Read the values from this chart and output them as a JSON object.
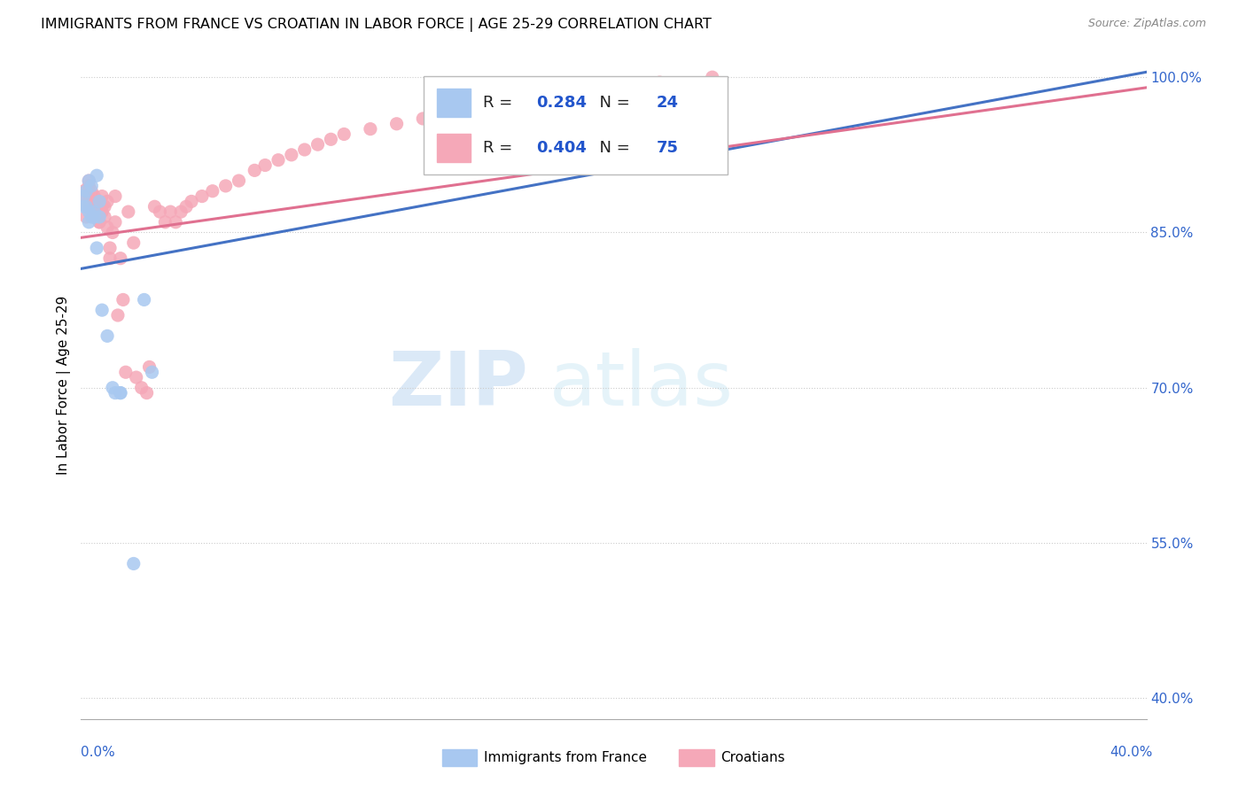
{
  "title": "IMMIGRANTS FROM FRANCE VS CROATIAN IN LABOR FORCE | AGE 25-29 CORRELATION CHART",
  "source": "Source: ZipAtlas.com",
  "ylabel": "In Labor Force | Age 25-29",
  "ylim": [
    0.38,
    1.025
  ],
  "xlim": [
    0.0,
    0.405
  ],
  "yticks": [
    0.4,
    0.55,
    0.7,
    0.85,
    1.0
  ],
  "ytick_labels": [
    "40.0%",
    "55.0%",
    "70.0%",
    "85.0%",
    "100.0%"
  ],
  "france_R": 0.284,
  "france_N": 24,
  "croatian_R": 0.404,
  "croatian_N": 75,
  "france_color": "#a8c8f0",
  "croatian_color": "#f5a8b8",
  "france_line_color": "#4472c4",
  "croatian_line_color": "#e07090",
  "legend_R_color": "#2255cc",
  "france_x": [
    0.001,
    0.001,
    0.002,
    0.002,
    0.003,
    0.003,
    0.003,
    0.004,
    0.004,
    0.005,
    0.005,
    0.006,
    0.006,
    0.007,
    0.007,
    0.008,
    0.01,
    0.012,
    0.013,
    0.015,
    0.015,
    0.02,
    0.024,
    0.027
  ],
  "france_y": [
    0.875,
    0.885,
    0.875,
    0.89,
    0.86,
    0.87,
    0.9,
    0.865,
    0.895,
    0.87,
    0.865,
    0.835,
    0.905,
    0.88,
    0.865,
    0.775,
    0.75,
    0.7,
    0.695,
    0.695,
    0.695,
    0.53,
    0.785,
    0.715
  ],
  "croatian_x": [
    0.001,
    0.001,
    0.001,
    0.002,
    0.002,
    0.002,
    0.003,
    0.003,
    0.003,
    0.003,
    0.004,
    0.004,
    0.004,
    0.005,
    0.005,
    0.005,
    0.006,
    0.006,
    0.007,
    0.007,
    0.007,
    0.007,
    0.008,
    0.008,
    0.008,
    0.009,
    0.009,
    0.01,
    0.01,
    0.011,
    0.011,
    0.012,
    0.013,
    0.013,
    0.014,
    0.015,
    0.016,
    0.017,
    0.018,
    0.02,
    0.021,
    0.023,
    0.025,
    0.026,
    0.028,
    0.03,
    0.032,
    0.034,
    0.036,
    0.038,
    0.04,
    0.042,
    0.046,
    0.05,
    0.055,
    0.06,
    0.066,
    0.07,
    0.075,
    0.08,
    0.085,
    0.09,
    0.095,
    0.1,
    0.11,
    0.12,
    0.13,
    0.14,
    0.15,
    0.16,
    0.17,
    0.18,
    0.2,
    0.22,
    0.24
  ],
  "croatian_y": [
    0.88,
    0.885,
    0.89,
    0.865,
    0.875,
    0.89,
    0.875,
    0.885,
    0.895,
    0.9,
    0.875,
    0.88,
    0.89,
    0.865,
    0.875,
    0.885,
    0.87,
    0.88,
    0.875,
    0.87,
    0.86,
    0.86,
    0.875,
    0.87,
    0.885,
    0.865,
    0.875,
    0.855,
    0.88,
    0.835,
    0.825,
    0.85,
    0.885,
    0.86,
    0.77,
    0.825,
    0.785,
    0.715,
    0.87,
    0.84,
    0.71,
    0.7,
    0.695,
    0.72,
    0.875,
    0.87,
    0.86,
    0.87,
    0.86,
    0.87,
    0.875,
    0.88,
    0.885,
    0.89,
    0.895,
    0.9,
    0.91,
    0.915,
    0.92,
    0.925,
    0.93,
    0.935,
    0.94,
    0.945,
    0.95,
    0.955,
    0.96,
    0.965,
    0.97,
    0.975,
    0.98,
    0.985,
    0.99,
    0.995,
    1.0
  ],
  "france_line_x0": 0.0,
  "france_line_y0": 0.815,
  "france_line_x1": 0.405,
  "france_line_y1": 1.005,
  "croatian_line_x0": 0.0,
  "croatian_line_y0": 0.845,
  "croatian_line_x1": 0.405,
  "croatian_line_y1": 0.99
}
